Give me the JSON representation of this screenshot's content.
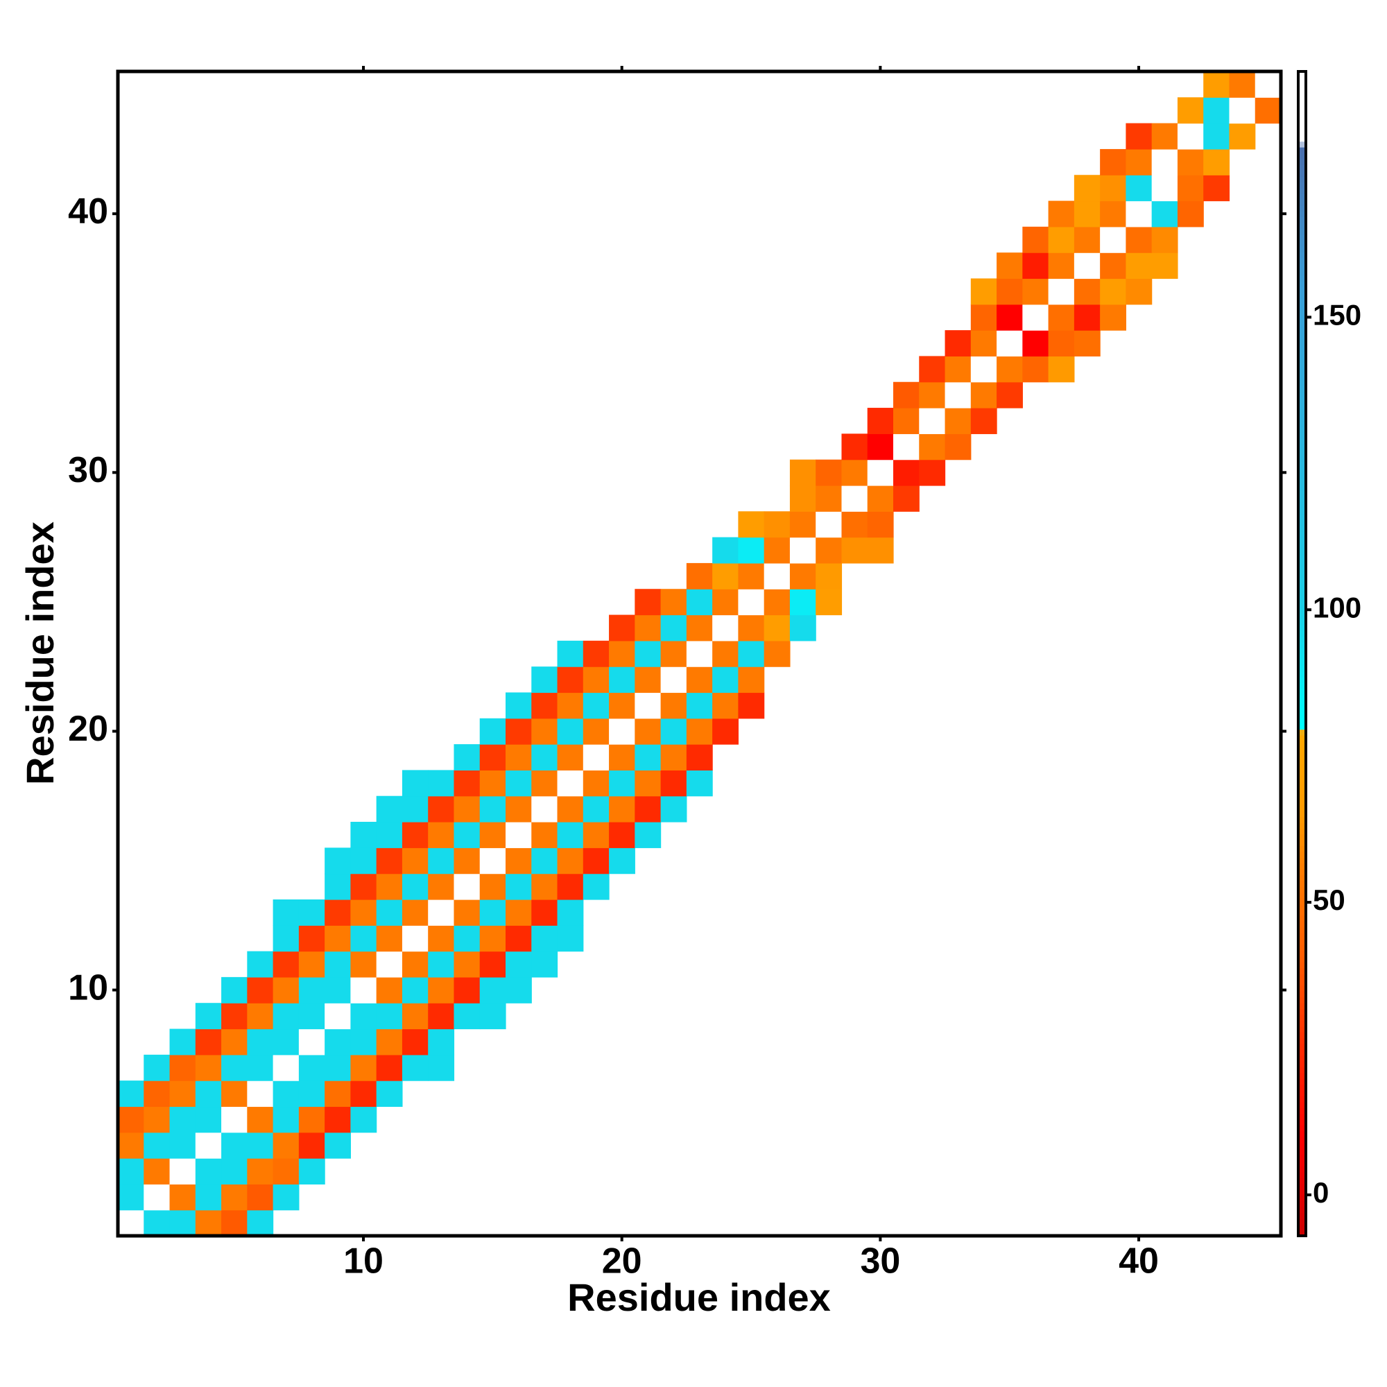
{
  "chart_data": {
    "type": "heatmap",
    "x_label": "Residue index",
    "y_label": "Residue index",
    "xlim": [
      0.5,
      45.5
    ],
    "ylim": [
      0.5,
      45.5
    ],
    "xticks": [
      10,
      20,
      30,
      40
    ],
    "yticks": [
      10,
      20,
      30,
      40
    ],
    "colorbar": {
      "lim": [
        -7,
        192
      ],
      "ticks": [
        0,
        50,
        100,
        150
      ]
    },
    "colorscale": [
      [
        -7,
        "#cc0000"
      ],
      [
        10,
        "#ff0000"
      ],
      [
        25,
        "#ff2a00"
      ],
      [
        40,
        "#ff5a00"
      ],
      [
        55,
        "#ff7a00"
      ],
      [
        65,
        "#ff9a00"
      ],
      [
        79,
        "#ffa800"
      ],
      [
        80,
        "#00ffff"
      ],
      [
        100,
        "#1ccfe6"
      ],
      [
        155,
        "#3a9fd8"
      ],
      [
        179,
        "#4a6fae"
      ],
      [
        180,
        "#ffffff"
      ],
      [
        192,
        "#ffffff"
      ]
    ],
    "rows": [
      {
        "y": 1,
        "x0": 1,
        "values": [
          180,
          95,
          95,
          55,
          40,
          95
        ]
      },
      {
        "y": 2,
        "x0": 1,
        "values": [
          95,
          180,
          55,
          95,
          55,
          40,
          95
        ]
      },
      {
        "y": 3,
        "x0": 1,
        "values": [
          95,
          55,
          180,
          95,
          95,
          55,
          50,
          95
        ]
      },
      {
        "y": 4,
        "x0": 1,
        "values": [
          55,
          95,
          95,
          180,
          95,
          95,
          55,
          25,
          95
        ]
      },
      {
        "y": 5,
        "x0": 1,
        "values": [
          45,
          55,
          95,
          95,
          180,
          55,
          95,
          50,
          25,
          95
        ]
      },
      {
        "y": 6,
        "x0": 1,
        "values": [
          95,
          45,
          55,
          95,
          55,
          180,
          95,
          95,
          50,
          25,
          95
        ]
      },
      {
        "y": 7,
        "x0": 2,
        "values": [
          95,
          45,
          55,
          95,
          95,
          180,
          95,
          95,
          55,
          25,
          95,
          95
        ]
      },
      {
        "y": 8,
        "x0": 3,
        "values": [
          95,
          30,
          55,
          95,
          95,
          180,
          95,
          95,
          55,
          25,
          95
        ]
      },
      {
        "y": 9,
        "x0": 4,
        "values": [
          95,
          30,
          55,
          95,
          95,
          180,
          95,
          95,
          55,
          25,
          95,
          95
        ]
      },
      {
        "y": 10,
        "x0": 5,
        "values": [
          95,
          30,
          55,
          95,
          95,
          180,
          55,
          95,
          55,
          25,
          95,
          95
        ]
      },
      {
        "y": 11,
        "x0": 6,
        "values": [
          95,
          30,
          55,
          95,
          55,
          180,
          55,
          95,
          55,
          25,
          95,
          95
        ]
      },
      {
        "y": 12,
        "x0": 7,
        "values": [
          95,
          30,
          55,
          95,
          55,
          180,
          55,
          95,
          55,
          25,
          95,
          95
        ]
      },
      {
        "y": 13,
        "x0": 7,
        "values": [
          95,
          95,
          30,
          55,
          95,
          55,
          180,
          55,
          95,
          55,
          25,
          95
        ]
      },
      {
        "y": 14,
        "x0": 9,
        "values": [
          95,
          30,
          55,
          95,
          55,
          180,
          55,
          95,
          55,
          25,
          95
        ]
      },
      {
        "y": 15,
        "x0": 9,
        "values": [
          95,
          95,
          30,
          55,
          95,
          55,
          180,
          55,
          95,
          55,
          25,
          95
        ]
      },
      {
        "y": 16,
        "x0": 10,
        "values": [
          95,
          95,
          30,
          55,
          95,
          55,
          180,
          55,
          95,
          55,
          25,
          95
        ]
      },
      {
        "y": 17,
        "x0": 11,
        "values": [
          95,
          95,
          30,
          55,
          95,
          55,
          180,
          55,
          95,
          55,
          25,
          95
        ]
      },
      {
        "y": 18,
        "x0": 12,
        "values": [
          95,
          95,
          30,
          55,
          95,
          55,
          180,
          55,
          95,
          55,
          25,
          95
        ]
      },
      {
        "y": 19,
        "x0": 14,
        "values": [
          95,
          30,
          55,
          95,
          55,
          180,
          55,
          95,
          55,
          25
        ]
      },
      {
        "y": 20,
        "x0": 15,
        "values": [
          95,
          30,
          55,
          95,
          55,
          180,
          55,
          95,
          55,
          25
        ]
      },
      {
        "y": 21,
        "x0": 16,
        "values": [
          95,
          30,
          55,
          95,
          55,
          180,
          55,
          95,
          55,
          25
        ]
      },
      {
        "y": 22,
        "x0": 17,
        "values": [
          95,
          30,
          55,
          95,
          55,
          180,
          55,
          95,
          55
        ]
      },
      {
        "y": 23,
        "x0": 18,
        "values": [
          95,
          30,
          55,
          95,
          55,
          180,
          55,
          95,
          55
        ]
      },
      {
        "y": 24,
        "x0": 20,
        "values": [
          30,
          55,
          95,
          55,
          180,
          55,
          68,
          95
        ]
      },
      {
        "y": 25,
        "x0": 21,
        "values": [
          30,
          55,
          95,
          55,
          180,
          55,
          88,
          68
        ]
      },
      {
        "y": 26,
        "x0": 23,
        "values": [
          50,
          68,
          55,
          180,
          55,
          65
        ]
      },
      {
        "y": 27,
        "x0": 24,
        "values": [
          95,
          88,
          55,
          180,
          55,
          62,
          62
        ]
      },
      {
        "y": 28,
        "x0": 25,
        "values": [
          68,
          62,
          55,
          180,
          50,
          45
        ]
      },
      {
        "y": 29,
        "x0": 27,
        "values": [
          62,
          55,
          180,
          55,
          30
        ]
      },
      {
        "y": 30,
        "x0": 27,
        "values": [
          62,
          45,
          55,
          180,
          20,
          25
        ]
      },
      {
        "y": 31,
        "x0": 29,
        "values": [
          25,
          10,
          180,
          55,
          45
        ]
      },
      {
        "y": 32,
        "x0": 30,
        "values": [
          25,
          50,
          180,
          55,
          30
        ]
      },
      {
        "y": 33,
        "x0": 31,
        "values": [
          40,
          55,
          180,
          55,
          30
        ]
      },
      {
        "y": 34,
        "x0": 32,
        "values": [
          30,
          55,
          180,
          55,
          45,
          65
        ]
      },
      {
        "y": 35,
        "x0": 33,
        "values": [
          25,
          55,
          180,
          10,
          45,
          50
        ]
      },
      {
        "y": 36,
        "x0": 34,
        "values": [
          45,
          10,
          180,
          50,
          20,
          55
        ]
      },
      {
        "y": 37,
        "x0": 34,
        "values": [
          68,
          45,
          55,
          180,
          50,
          68,
          60
        ]
      },
      {
        "y": 38,
        "x0": 35,
        "values": [
          55,
          20,
          55,
          180,
          50,
          68,
          68
        ]
      },
      {
        "y": 39,
        "x0": 36,
        "values": [
          45,
          68,
          55,
          180,
          50,
          60
        ]
      },
      {
        "y": 40,
        "x0": 37,
        "values": [
          55,
          68,
          55,
          180,
          95,
          45
        ]
      },
      {
        "y": 41,
        "x0": 38,
        "values": [
          68,
          62,
          95,
          180,
          50,
          30
        ]
      },
      {
        "y": 42,
        "x0": 39,
        "values": [
          45,
          55,
          180,
          55,
          68
        ]
      },
      {
        "y": 43,
        "x0": 40,
        "values": [
          30,
          55,
          180,
          95,
          68
        ]
      },
      {
        "y": 44,
        "x0": 42,
        "values": [
          68,
          95,
          180,
          50
        ]
      },
      {
        "y": 45,
        "x0": 43,
        "values": [
          68,
          55,
          180
        ]
      }
    ]
  }
}
